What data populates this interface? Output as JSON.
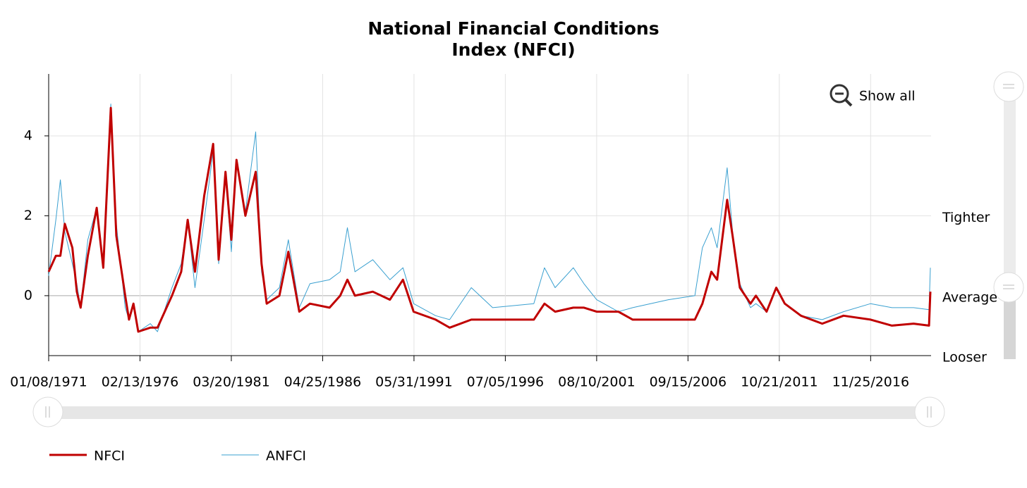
{
  "chart_data": {
    "type": "line",
    "title": [
      "National Financial Conditions",
      "Index (NFCI)"
    ],
    "show_all": "Show all",
    "x": [
      "01/08/1971",
      "06/04/1971",
      "09/03/1971",
      "12/03/1971",
      "05/05/1972",
      "08/04/1972",
      "10/20/1972",
      "03/16/1973",
      "09/14/1973",
      "01/25/1974",
      "06/28/1974",
      "10/18/1974",
      "04/18/1975",
      "07/04/1975",
      "10/03/1975",
      "01/09/1976",
      "09/10/1976",
      "02/04/1977",
      "11/25/1977",
      "06/02/1978",
      "10/13/1978",
      "03/09/1979",
      "09/14/1979",
      "03/14/1980",
      "07/04/1980",
      "11/21/1980",
      "03/20/1981",
      "07/03/1981",
      "01/01/1982",
      "07/30/1982",
      "11/26/1982",
      "03/11/1983",
      "11/25/1983",
      "05/25/1984",
      "01/04/1985",
      "08/09/1985",
      "09/12/1986",
      "04/17/1987",
      "09/11/1987",
      "02/12/1988",
      "02/10/1989",
      "01/26/1990",
      "10/19/1990",
      "05/24/1991",
      "08/14/1992",
      "05/28/1993",
      "08/12/1994",
      "10/20/1995",
      "02/06/1998",
      "09/11/1998",
      "04/16/1999",
      "04/21/2000",
      "11/24/2000",
      "08/10/2001",
      "10/25/2002",
      "08/15/2003",
      "08/12/2005",
      "02/02/2007",
      "07/06/2007",
      "01/04/2008",
      "05/02/2008",
      "11/21/2008",
      "03/13/2009",
      "08/07/2009",
      "03/12/2010",
      "07/02/2010",
      "02/04/2011",
      "08/19/2011",
      "02/10/2012",
      "01/04/2013",
      "03/14/2014",
      "05/22/2015",
      "11/25/2016",
      "02/02/2018",
      "04/19/2019",
      "02/28/2020",
      "03/27/2020"
    ],
    "series": [
      {
        "name": "NFCI",
        "color": "#c00000",
        "width": 3,
        "values": [
          0.6,
          1.0,
          1.0,
          1.8,
          1.2,
          0.1,
          -0.3,
          1.0,
          2.2,
          0.7,
          4.7,
          1.5,
          0.0,
          -0.6,
          -0.2,
          -0.9,
          -0.8,
          -0.8,
          0.0,
          0.6,
          1.9,
          0.6,
          2.5,
          3.8,
          0.9,
          3.1,
          1.4,
          3.4,
          2.0,
          3.1,
          0.8,
          -0.2,
          0.0,
          1.1,
          -0.4,
          -0.2,
          -0.3,
          0.0,
          0.4,
          0.0,
          0.1,
          -0.1,
          0.4,
          -0.4,
          -0.6,
          -0.8,
          -0.6,
          -0.6,
          -0.6,
          -0.2,
          -0.4,
          -0.3,
          -0.3,
          -0.4,
          -0.4,
          -0.6,
          -0.6,
          -0.6,
          -0.2,
          0.6,
          0.4,
          2.4,
          1.5,
          0.2,
          -0.2,
          0.0,
          -0.4,
          0.2,
          -0.2,
          -0.5,
          -0.7,
          -0.5,
          -0.6,
          -0.75,
          -0.7,
          -0.75,
          0.1
        ]
      },
      {
        "name": "ANFCI",
        "color": "#3aa0d0",
        "width": 1,
        "values": [
          0.5,
          1.9,
          2.9,
          1.6,
          0.8,
          0.3,
          -0.3,
          1.4,
          2.2,
          0.8,
          4.8,
          1.8,
          -0.3,
          -0.6,
          -0.2,
          -0.9,
          -0.7,
          -0.9,
          0.2,
          0.8,
          1.9,
          0.2,
          1.9,
          3.6,
          0.8,
          3.0,
          1.1,
          3.3,
          2.1,
          4.1,
          0.6,
          -0.1,
          0.2,
          1.4,
          -0.3,
          0.3,
          0.4,
          0.6,
          1.7,
          0.6,
          0.9,
          0.4,
          0.7,
          -0.2,
          -0.5,
          -0.6,
          0.2,
          -0.3,
          -0.2,
          0.7,
          0.2,
          0.7,
          0.3,
          -0.1,
          -0.4,
          -0.3,
          -0.1,
          0.0,
          1.2,
          1.7,
          1.2,
          3.2,
          1.6,
          0.3,
          -0.3,
          -0.2,
          -0.4,
          0.2,
          -0.2,
          -0.5,
          -0.6,
          -0.4,
          -0.2,
          -0.3,
          -0.3,
          -0.35,
          0.7
        ]
      }
    ],
    "xlim": [
      "01/08/1971",
      "04/10/2020"
    ],
    "xticks": [
      "01/08/1971",
      "02/13/1976",
      "03/20/1981",
      "04/25/1986",
      "05/31/1991",
      "07/05/1996",
      "08/10/2001",
      "09/15/2006",
      "10/21/2011",
      "11/25/2016"
    ],
    "ylim": [
      -1.5,
      5.55
    ],
    "yticks": [
      0,
      2,
      4
    ],
    "right_labels": [
      {
        "value": 2,
        "label": "Tighter"
      },
      {
        "value": 0,
        "label": "Average"
      },
      {
        "value": -1.5,
        "label": "Looser"
      }
    ],
    "grid": true
  }
}
